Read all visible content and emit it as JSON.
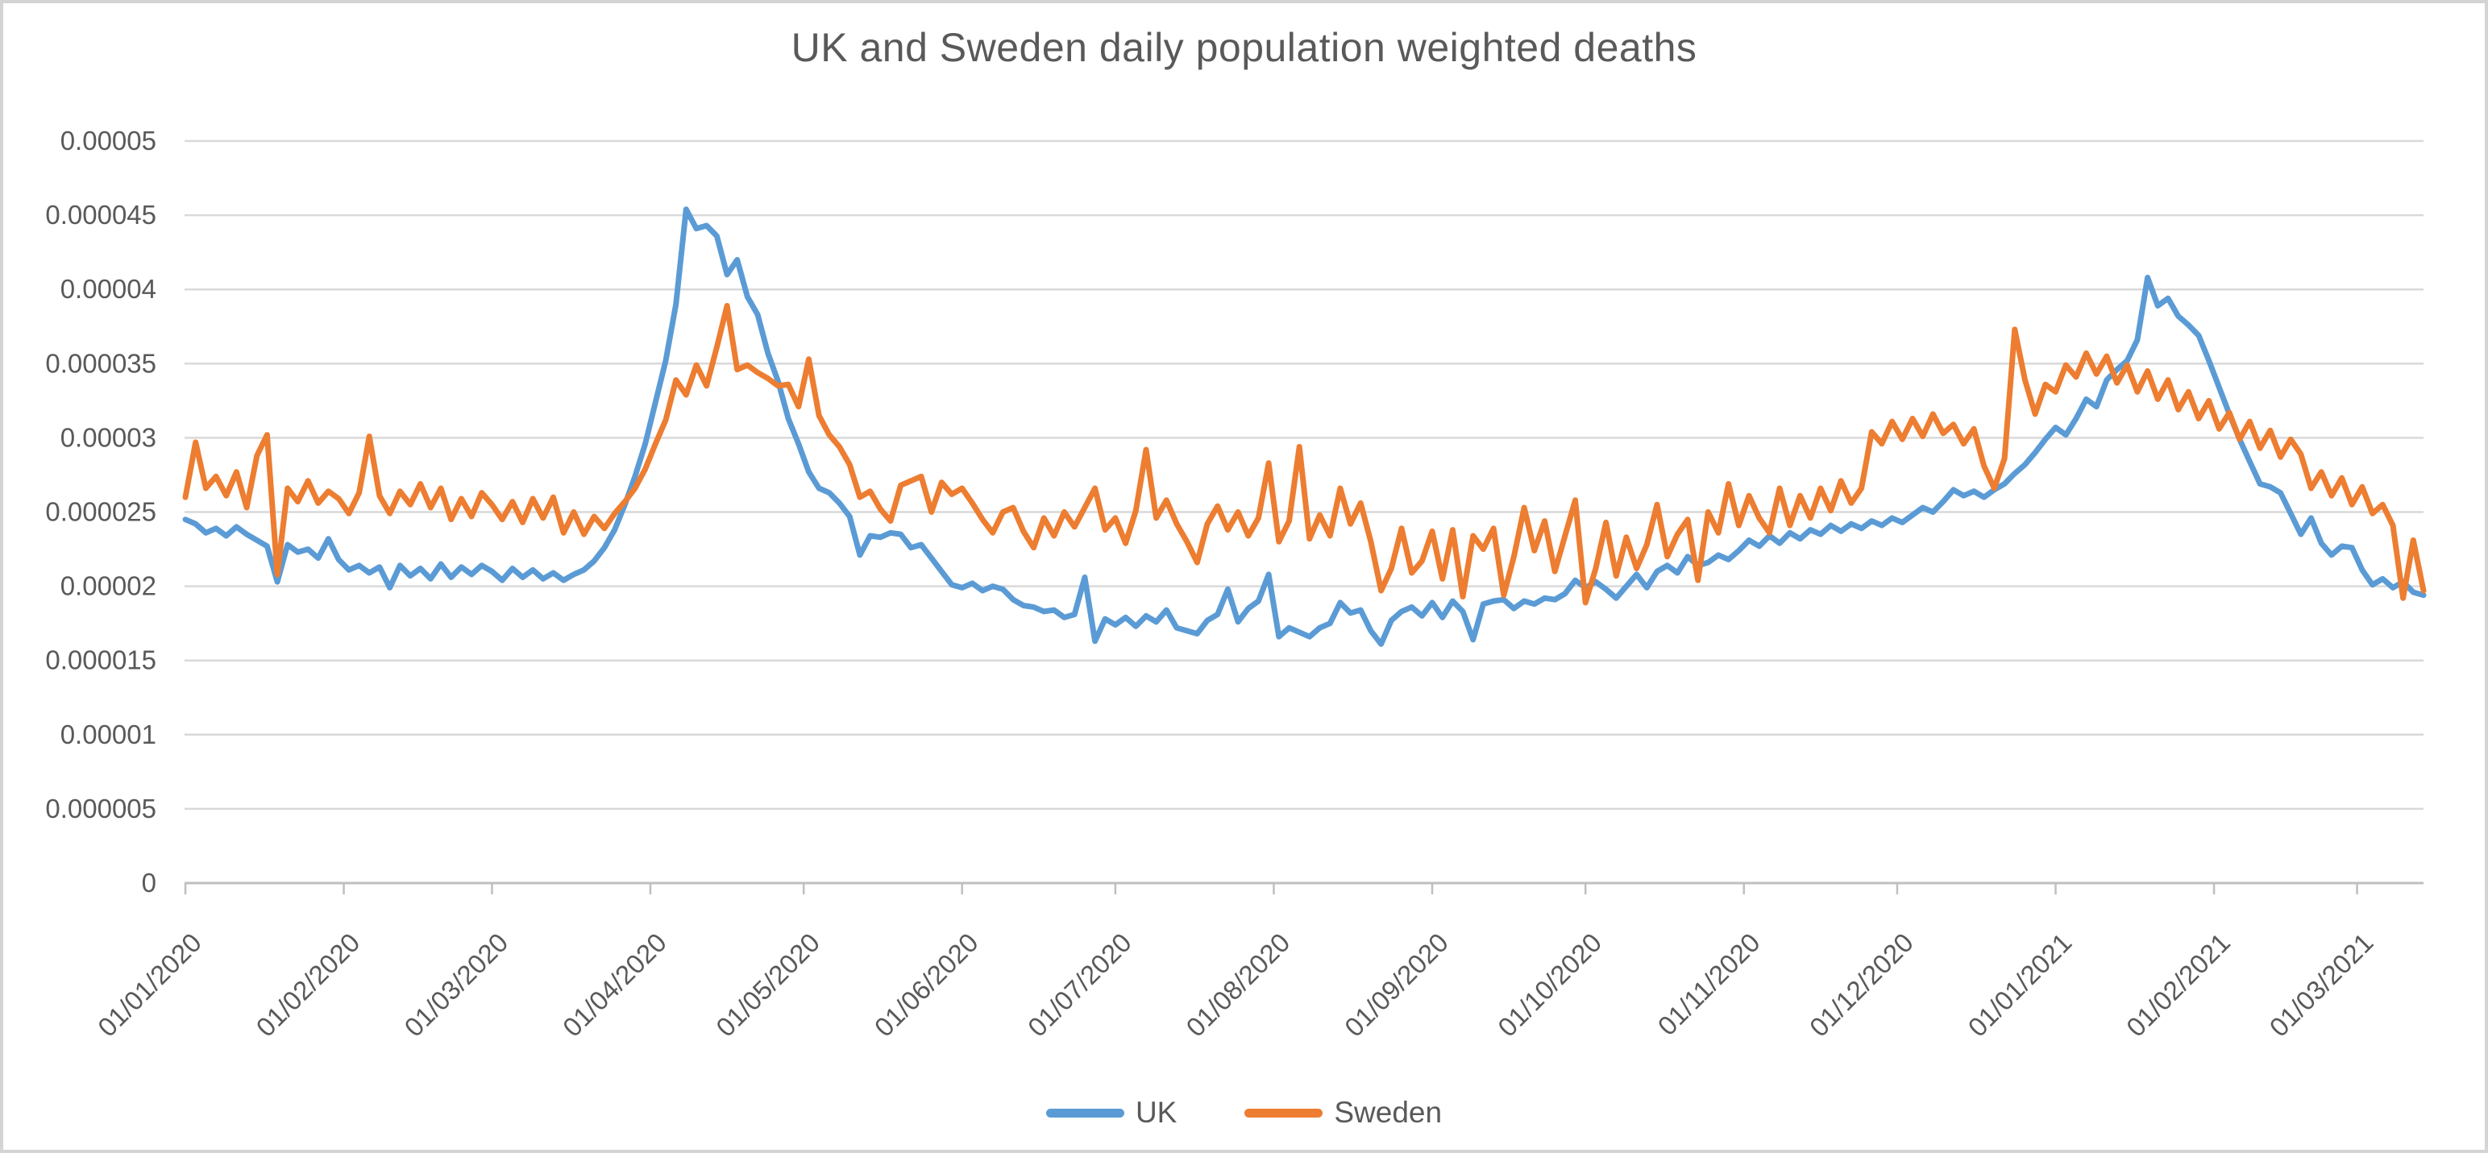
{
  "title": {
    "text": "UK and Sweden daily population weighted deaths",
    "color": "#595959"
  },
  "chart_data": {
    "type": "line",
    "title": "UK and Sweden daily population weighted deaths",
    "x_axis": {
      "tick_labels": [
        "01/01/2020",
        "01/02/2020",
        "01/03/2020",
        "01/04/2020",
        "01/05/2020",
        "01/06/2020",
        "01/07/2020",
        "01/08/2020",
        "01/09/2020",
        "01/10/2020",
        "01/11/2020",
        "01/12/2020",
        "01/01/2021",
        "01/02/2021",
        "01/03/2021"
      ],
      "tick_days": [
        0,
        31,
        60,
        91,
        121,
        152,
        182,
        213,
        244,
        274,
        305,
        335,
        366,
        397,
        425
      ],
      "start_day": 0,
      "end_day": 438,
      "date_format": "dd/mm/yyyy"
    },
    "y_axis": {
      "min": 0,
      "max": 5e-05,
      "step": 5e-06,
      "tick_labels": [
        "0",
        "0.000005",
        "0.00001",
        "0.000015",
        "0.00002",
        "0.000025",
        "0.00003",
        "0.000035",
        "0.00004",
        "0.000045",
        "0.00005"
      ]
    },
    "grid": true,
    "legend_position": "bottom",
    "series": [
      {
        "name": "UK",
        "color": "#5B9BD5",
        "day_step": 2,
        "unit_scale": 1e-06,
        "values_e6": [
          24.5,
          24.2,
          23.6,
          23.9,
          23.4,
          24.0,
          23.5,
          23.1,
          22.7,
          20.3,
          22.8,
          22.3,
          22.5,
          21.9,
          23.2,
          21.8,
          21.1,
          21.4,
          20.9,
          21.3,
          19.9,
          21.4,
          20.7,
          21.2,
          20.5,
          21.5,
          20.6,
          21.3,
          20.8,
          21.4,
          21.0,
          20.4,
          21.2,
          20.6,
          21.1,
          20.5,
          20.9,
          20.4,
          20.8,
          21.1,
          21.7,
          22.6,
          23.8,
          25.5,
          27.4,
          29.6,
          32.4,
          35.2,
          39.0,
          45.4,
          44.1,
          44.3,
          43.6,
          41.0,
          42.0,
          39.5,
          38.3,
          35.7,
          33.8,
          31.3,
          29.6,
          27.7,
          26.6,
          26.3,
          25.6,
          24.7,
          22.1,
          23.4,
          23.3,
          23.6,
          23.5,
          22.6,
          22.8,
          21.9,
          21.0,
          20.1,
          19.9,
          20.2,
          19.7,
          20.0,
          19.8,
          19.1,
          18.7,
          18.6,
          18.3,
          18.4,
          17.9,
          18.1,
          20.6,
          16.3,
          17.8,
          17.4,
          17.9,
          17.3,
          18.0,
          17.6,
          18.4,
          17.2,
          17.0,
          16.8,
          17.7,
          18.1,
          19.8,
          17.6,
          18.5,
          19.0,
          20.8,
          16.6,
          17.2,
          16.9,
          16.6,
          17.2,
          17.5,
          18.9,
          18.2,
          18.4,
          17.0,
          16.1,
          17.7,
          18.3,
          18.6,
          18.0,
          18.9,
          17.9,
          19.0,
          18.3,
          16.4,
          18.8,
          19.0,
          19.1,
          18.5,
          19.0,
          18.8,
          19.2,
          19.1,
          19.5,
          20.4,
          19.9,
          20.3,
          19.8,
          19.2,
          20.0,
          20.8,
          19.9,
          21.0,
          21.4,
          20.9,
          22.0,
          21.4,
          21.6,
          22.1,
          21.8,
          22.4,
          23.1,
          22.7,
          23.4,
          22.9,
          23.6,
          23.2,
          23.8,
          23.5,
          24.1,
          23.7,
          24.2,
          23.9,
          24.4,
          24.1,
          24.6,
          24.3,
          24.8,
          25.3,
          25.0,
          25.7,
          26.5,
          26.1,
          26.4,
          26.0,
          26.5,
          26.9,
          27.6,
          28.2,
          29.0,
          29.9,
          30.7,
          30.2,
          31.3,
          32.6,
          32.1,
          33.9,
          34.6,
          35.2,
          36.6,
          40.8,
          38.9,
          39.4,
          38.2,
          37.6,
          36.9,
          35.2,
          33.4,
          31.6,
          29.9,
          28.4,
          26.9,
          26.7,
          26.3,
          24.9,
          23.5,
          24.6,
          22.9,
          22.1,
          22.7,
          22.6,
          21.1,
          20.1,
          20.5,
          19.9,
          20.3,
          19.6,
          19.4
        ]
      },
      {
        "name": "Sweden",
        "color": "#ED7D31",
        "day_step": 2,
        "unit_scale": 1e-06,
        "values_e6": [
          26.0,
          29.7,
          26.6,
          27.4,
          26.1,
          27.7,
          25.3,
          28.8,
          30.2,
          20.8,
          26.6,
          25.7,
          27.1,
          25.6,
          26.4,
          25.9,
          24.9,
          26.3,
          30.1,
          26.1,
          24.9,
          26.4,
          25.5,
          26.9,
          25.3,
          26.6,
          24.5,
          25.9,
          24.7,
          26.3,
          25.5,
          24.5,
          25.7,
          24.3,
          25.9,
          24.6,
          26.0,
          23.6,
          25.0,
          23.5,
          24.7,
          23.9,
          24.9,
          25.7,
          26.6,
          27.9,
          29.6,
          31.2,
          33.9,
          32.9,
          34.9,
          33.5,
          36.1,
          38.9,
          34.6,
          34.9,
          34.4,
          34.0,
          33.5,
          33.6,
          32.1,
          35.3,
          31.5,
          30.2,
          29.4,
          28.2,
          26.0,
          26.4,
          25.2,
          24.4,
          26.8,
          27.1,
          27.4,
          25.0,
          27.0,
          26.2,
          26.6,
          25.6,
          24.5,
          23.6,
          25.0,
          25.3,
          23.7,
          22.6,
          24.6,
          23.4,
          25.0,
          24.0,
          25.3,
          26.6,
          23.8,
          24.6,
          22.9,
          25.1,
          29.2,
          24.6,
          25.8,
          24.2,
          23.0,
          21.6,
          24.2,
          25.4,
          23.8,
          25.0,
          23.4,
          24.6,
          28.3,
          23.0,
          24.4,
          29.4,
          23.2,
          24.8,
          23.4,
          26.6,
          24.2,
          25.6,
          23.0,
          19.7,
          21.2,
          23.9,
          20.9,
          21.7,
          23.7,
          20.5,
          23.8,
          19.3,
          23.4,
          22.5,
          23.9,
          19.4,
          22.0,
          25.3,
          22.4,
          24.4,
          21.0,
          23.4,
          25.8,
          18.9,
          21.2,
          24.3,
          20.7,
          23.3,
          21.2,
          22.8,
          25.5,
          22.0,
          23.5,
          24.5,
          20.4,
          25.0,
          23.6,
          26.9,
          24.1,
          26.1,
          24.6,
          23.6,
          26.6,
          24.1,
          26.1,
          24.6,
          26.6,
          25.1,
          27.1,
          25.6,
          26.6,
          30.4,
          29.6,
          31.1,
          29.9,
          31.3,
          30.1,
          31.6,
          30.3,
          30.9,
          29.6,
          30.6,
          28.1,
          26.6,
          28.6,
          37.3,
          33.9,
          31.6,
          33.6,
          33.1,
          34.9,
          34.1,
          35.7,
          34.3,
          35.5,
          33.7,
          34.9,
          33.1,
          34.5,
          32.6,
          33.9,
          31.9,
          33.1,
          31.3,
          32.5,
          30.6,
          31.7,
          29.9,
          31.1,
          29.3,
          30.5,
          28.7,
          29.9,
          28.9,
          26.6,
          27.7,
          26.1,
          27.3,
          25.5,
          26.7,
          24.9,
          25.5,
          24.1,
          19.2,
          23.1,
          19.7
        ]
      }
    ]
  },
  "legend": {
    "items": [
      {
        "label": "UK",
        "color": "#5B9BD5"
      },
      {
        "label": "Sweden",
        "color": "#ED7D31"
      }
    ]
  },
  "axis_style": {
    "grid_color": "#D9D9D9",
    "axis_color": "#BFBFBF",
    "text_color": "#595959"
  }
}
